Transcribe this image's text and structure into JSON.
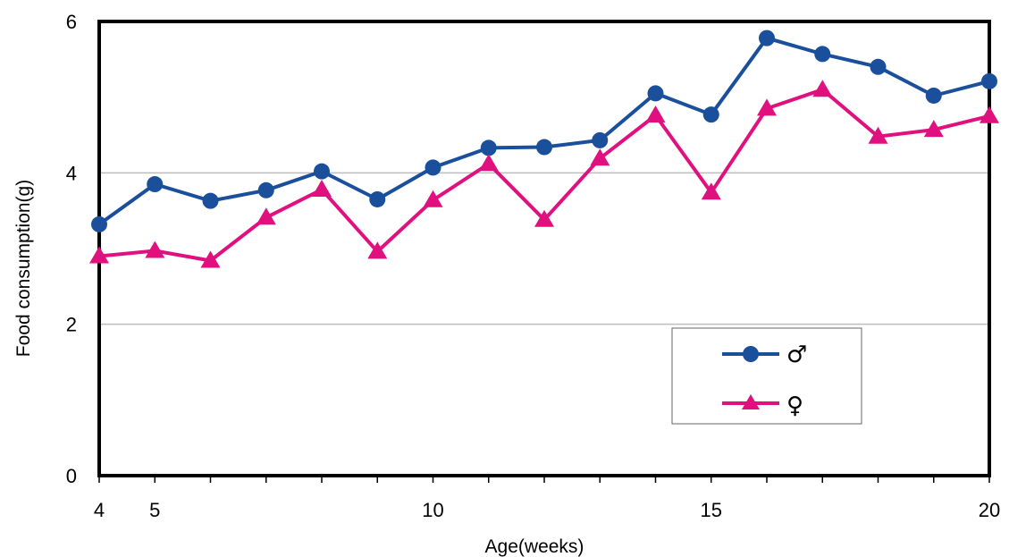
{
  "chart_data": {
    "type": "line",
    "title": "",
    "xlabel": "Age(weeks)",
    "ylabel": "Food consumption(g)",
    "x": [
      4,
      5,
      6,
      7,
      8,
      9,
      10,
      11,
      12,
      13,
      14,
      15,
      16,
      17,
      18,
      19,
      20
    ],
    "xlim": [
      4,
      20
    ],
    "ylim": [
      0,
      6
    ],
    "x_tick_labels": [
      "4",
      "5",
      "10",
      "15",
      "20"
    ],
    "y_tick_labels": [
      "0",
      "2",
      "4",
      "6"
    ],
    "grid": "horizontal",
    "legend_position": "lower-right",
    "series": [
      {
        "name": "♂",
        "marker": "circle",
        "color": "#1a4f9c",
        "values": [
          3.32,
          3.85,
          3.63,
          3.77,
          4.02,
          3.65,
          4.07,
          4.33,
          4.34,
          4.43,
          5.05,
          4.77,
          5.78,
          5.57,
          5.4,
          5.02,
          5.21
        ]
      },
      {
        "name": "♀",
        "marker": "triangle",
        "color": "#e0117f",
        "values": [
          2.9,
          2.97,
          2.84,
          3.41,
          3.78,
          2.96,
          3.64,
          4.12,
          3.38,
          4.19,
          4.76,
          3.74,
          4.85,
          5.1,
          4.48,
          4.57,
          4.75
        ]
      }
    ]
  }
}
